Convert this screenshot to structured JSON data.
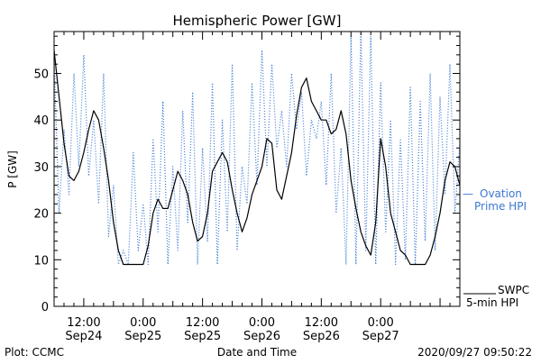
{
  "chart_data": {
    "type": "line",
    "title": "Hemispheric Power [GW]",
    "xlabel": "Date and Time",
    "ylabel": "P [GW]",
    "ylim": [
      0,
      59
    ],
    "xlim": [
      "2020-09-24T06:00",
      "2020-09-27T16:00"
    ],
    "y_ticks": [
      0,
      10,
      20,
      30,
      40,
      50
    ],
    "x_ticks": [
      {
        "t": "2020-09-24T12:00",
        "line1": "12:00",
        "line2": "Sep24"
      },
      {
        "t": "2020-09-25T00:00",
        "line1": "0:00",
        "line2": "Sep25"
      },
      {
        "t": "2020-09-25T12:00",
        "line1": "12:00",
        "line2": "Sep25"
      },
      {
        "t": "2020-09-26T00:00",
        "line1": "0:00",
        "line2": "Sep26"
      },
      {
        "t": "2020-09-26T12:00",
        "line1": "12:00",
        "line2": "Sep26"
      },
      {
        "t": "2020-09-27T00:00",
        "line1": "0:00",
        "line2": "Sep27"
      }
    ],
    "grid": false,
    "series": [
      {
        "name": "SWPC 5-min HPI",
        "color": "#000000",
        "style": "solid",
        "x": [
          "2020-09-24T06:00",
          "2020-09-24T07:00",
          "2020-09-24T08:00",
          "2020-09-24T09:00",
          "2020-09-24T10:00",
          "2020-09-24T11:00",
          "2020-09-24T12:00",
          "2020-09-24T13:00",
          "2020-09-24T14:00",
          "2020-09-24T15:00",
          "2020-09-24T16:00",
          "2020-09-24T17:00",
          "2020-09-24T18:00",
          "2020-09-24T19:00",
          "2020-09-24T20:00",
          "2020-09-24T21:00",
          "2020-09-24T22:00",
          "2020-09-24T23:00",
          "2020-09-25T00:00",
          "2020-09-25T01:00",
          "2020-09-25T02:00",
          "2020-09-25T03:00",
          "2020-09-25T04:00",
          "2020-09-25T05:00",
          "2020-09-25T06:00",
          "2020-09-25T07:00",
          "2020-09-25T08:00",
          "2020-09-25T09:00",
          "2020-09-25T10:00",
          "2020-09-25T11:00",
          "2020-09-25T12:00",
          "2020-09-25T13:00",
          "2020-09-25T14:00",
          "2020-09-25T15:00",
          "2020-09-25T16:00",
          "2020-09-25T17:00",
          "2020-09-25T18:00",
          "2020-09-25T19:00",
          "2020-09-25T20:00",
          "2020-09-25T21:00",
          "2020-09-25T22:00",
          "2020-09-25T23:00",
          "2020-09-26T00:00",
          "2020-09-26T01:00",
          "2020-09-26T02:00",
          "2020-09-26T03:00",
          "2020-09-26T04:00",
          "2020-09-26T05:00",
          "2020-09-26T06:00",
          "2020-09-26T07:00",
          "2020-09-26T08:00",
          "2020-09-26T09:00",
          "2020-09-26T10:00",
          "2020-09-26T11:00",
          "2020-09-26T12:00",
          "2020-09-26T13:00",
          "2020-09-26T14:00",
          "2020-09-26T15:00",
          "2020-09-26T16:00",
          "2020-09-26T17:00",
          "2020-09-26T18:00",
          "2020-09-26T19:00",
          "2020-09-26T20:00",
          "2020-09-26T21:00",
          "2020-09-26T22:00",
          "2020-09-26T23:00",
          "2020-09-27T00:00",
          "2020-09-27T01:00",
          "2020-09-27T02:00",
          "2020-09-27T03:00",
          "2020-09-27T04:00",
          "2020-09-27T05:00",
          "2020-09-27T06:00",
          "2020-09-27T07:00",
          "2020-09-27T08:00",
          "2020-09-27T09:00",
          "2020-09-27T10:00",
          "2020-09-27T11:00",
          "2020-09-27T12:00",
          "2020-09-27T13:00",
          "2020-09-27T14:00",
          "2020-09-27T15:00",
          "2020-09-27T16:00"
        ],
        "values": [
          55,
          45,
          35,
          28,
          27,
          29,
          33,
          38,
          42,
          40,
          34,
          27,
          18,
          12,
          9,
          9,
          9,
          9,
          9,
          13,
          20,
          23,
          21,
          21,
          25,
          29,
          27,
          24,
          18,
          14,
          15,
          20,
          29,
          31,
          33,
          31,
          25,
          20,
          16,
          19,
          24,
          27,
          30,
          36,
          35,
          25,
          23,
          28,
          33,
          41,
          47,
          49,
          44,
          42,
          40,
          40,
          37,
          38,
          42,
          37,
          27,
          21,
          16,
          13,
          11,
          18,
          36,
          30,
          20,
          16,
          12,
          11,
          9,
          9,
          9,
          9,
          11,
          15,
          20,
          27,
          31,
          30,
          26
        ]
      },
      {
        "name": "Ovation Prime HPI",
        "color": "#3a78d4",
        "style": "dotted",
        "x": [
          "2020-09-24T06:00",
          "2020-09-24T07:00",
          "2020-09-24T08:00",
          "2020-09-24T09:00",
          "2020-09-24T10:00",
          "2020-09-24T11:00",
          "2020-09-24T12:00",
          "2020-09-24T13:00",
          "2020-09-24T14:00",
          "2020-09-24T15:00",
          "2020-09-24T16:00",
          "2020-09-24T17:00",
          "2020-09-24T18:00",
          "2020-09-24T19:00",
          "2020-09-24T20:00",
          "2020-09-24T21:00",
          "2020-09-24T22:00",
          "2020-09-24T23:00",
          "2020-09-25T00:00",
          "2020-09-25T01:00",
          "2020-09-25T02:00",
          "2020-09-25T03:00",
          "2020-09-25T04:00",
          "2020-09-25T05:00",
          "2020-09-25T06:00",
          "2020-09-25T07:00",
          "2020-09-25T08:00",
          "2020-09-25T09:00",
          "2020-09-25T10:00",
          "2020-09-25T11:00",
          "2020-09-25T12:00",
          "2020-09-25T13:00",
          "2020-09-25T14:00",
          "2020-09-25T15:00",
          "2020-09-25T16:00",
          "2020-09-25T17:00",
          "2020-09-25T18:00",
          "2020-09-25T19:00",
          "2020-09-25T20:00",
          "2020-09-25T21:00",
          "2020-09-25T22:00",
          "2020-09-25T23:00",
          "2020-09-26T00:00",
          "2020-09-26T01:00",
          "2020-09-26T02:00",
          "2020-09-26T03:00",
          "2020-09-26T04:00",
          "2020-09-26T05:00",
          "2020-09-26T06:00",
          "2020-09-26T07:00",
          "2020-09-26T08:00",
          "2020-09-26T09:00",
          "2020-09-26T10:00",
          "2020-09-26T11:00",
          "2020-09-26T12:00",
          "2020-09-26T13:00",
          "2020-09-26T14:00",
          "2020-09-26T15:00",
          "2020-09-26T16:00",
          "2020-09-26T17:00",
          "2020-09-26T18:00",
          "2020-09-26T19:00",
          "2020-09-26T20:00",
          "2020-09-26T21:00",
          "2020-09-26T22:00",
          "2020-09-26T23:00",
          "2020-09-27T00:00",
          "2020-09-27T01:00",
          "2020-09-27T02:00",
          "2020-09-27T03:00",
          "2020-09-27T04:00",
          "2020-09-27T05:00",
          "2020-09-27T06:00",
          "2020-09-27T07:00",
          "2020-09-27T08:00",
          "2020-09-27T09:00",
          "2020-09-27T10:00",
          "2020-09-27T11:00",
          "2020-09-27T12:00",
          "2020-09-27T13:00",
          "2020-09-27T14:00",
          "2020-09-27T15:00",
          "2020-09-27T16:00"
        ],
        "values": [
          53,
          20,
          38,
          24,
          50,
          30,
          54,
          28,
          40,
          22,
          50,
          15,
          26,
          9,
          12,
          9,
          33,
          12,
          22,
          9,
          36,
          16,
          44,
          9,
          30,
          12,
          42,
          18,
          46,
          9,
          34,
          14,
          48,
          9,
          40,
          16,
          52,
          12,
          30,
          22,
          48,
          26,
          55,
          30,
          52,
          34,
          42,
          30,
          50,
          38,
          46,
          28,
          40,
          36,
          44,
          26,
          50,
          20,
          34,
          9,
          58,
          9,
          59,
          12,
          58,
          9,
          48,
          16,
          40,
          9,
          36,
          10,
          47,
          9,
          44,
          14,
          50,
          12,
          45,
          24,
          52,
          20,
          35
        ]
      }
    ]
  },
  "labels": {
    "legend_ovation_dash": "—",
    "legend_ovation_line1": "Ovation",
    "legend_ovation_line2": "Prime HPI",
    "legend_swpc_line1": "SWPC",
    "legend_swpc_line2": "5-min HPI",
    "plot_credit": "Plot: CCMC",
    "timestamp": "2020/09/27 09:50:22"
  }
}
